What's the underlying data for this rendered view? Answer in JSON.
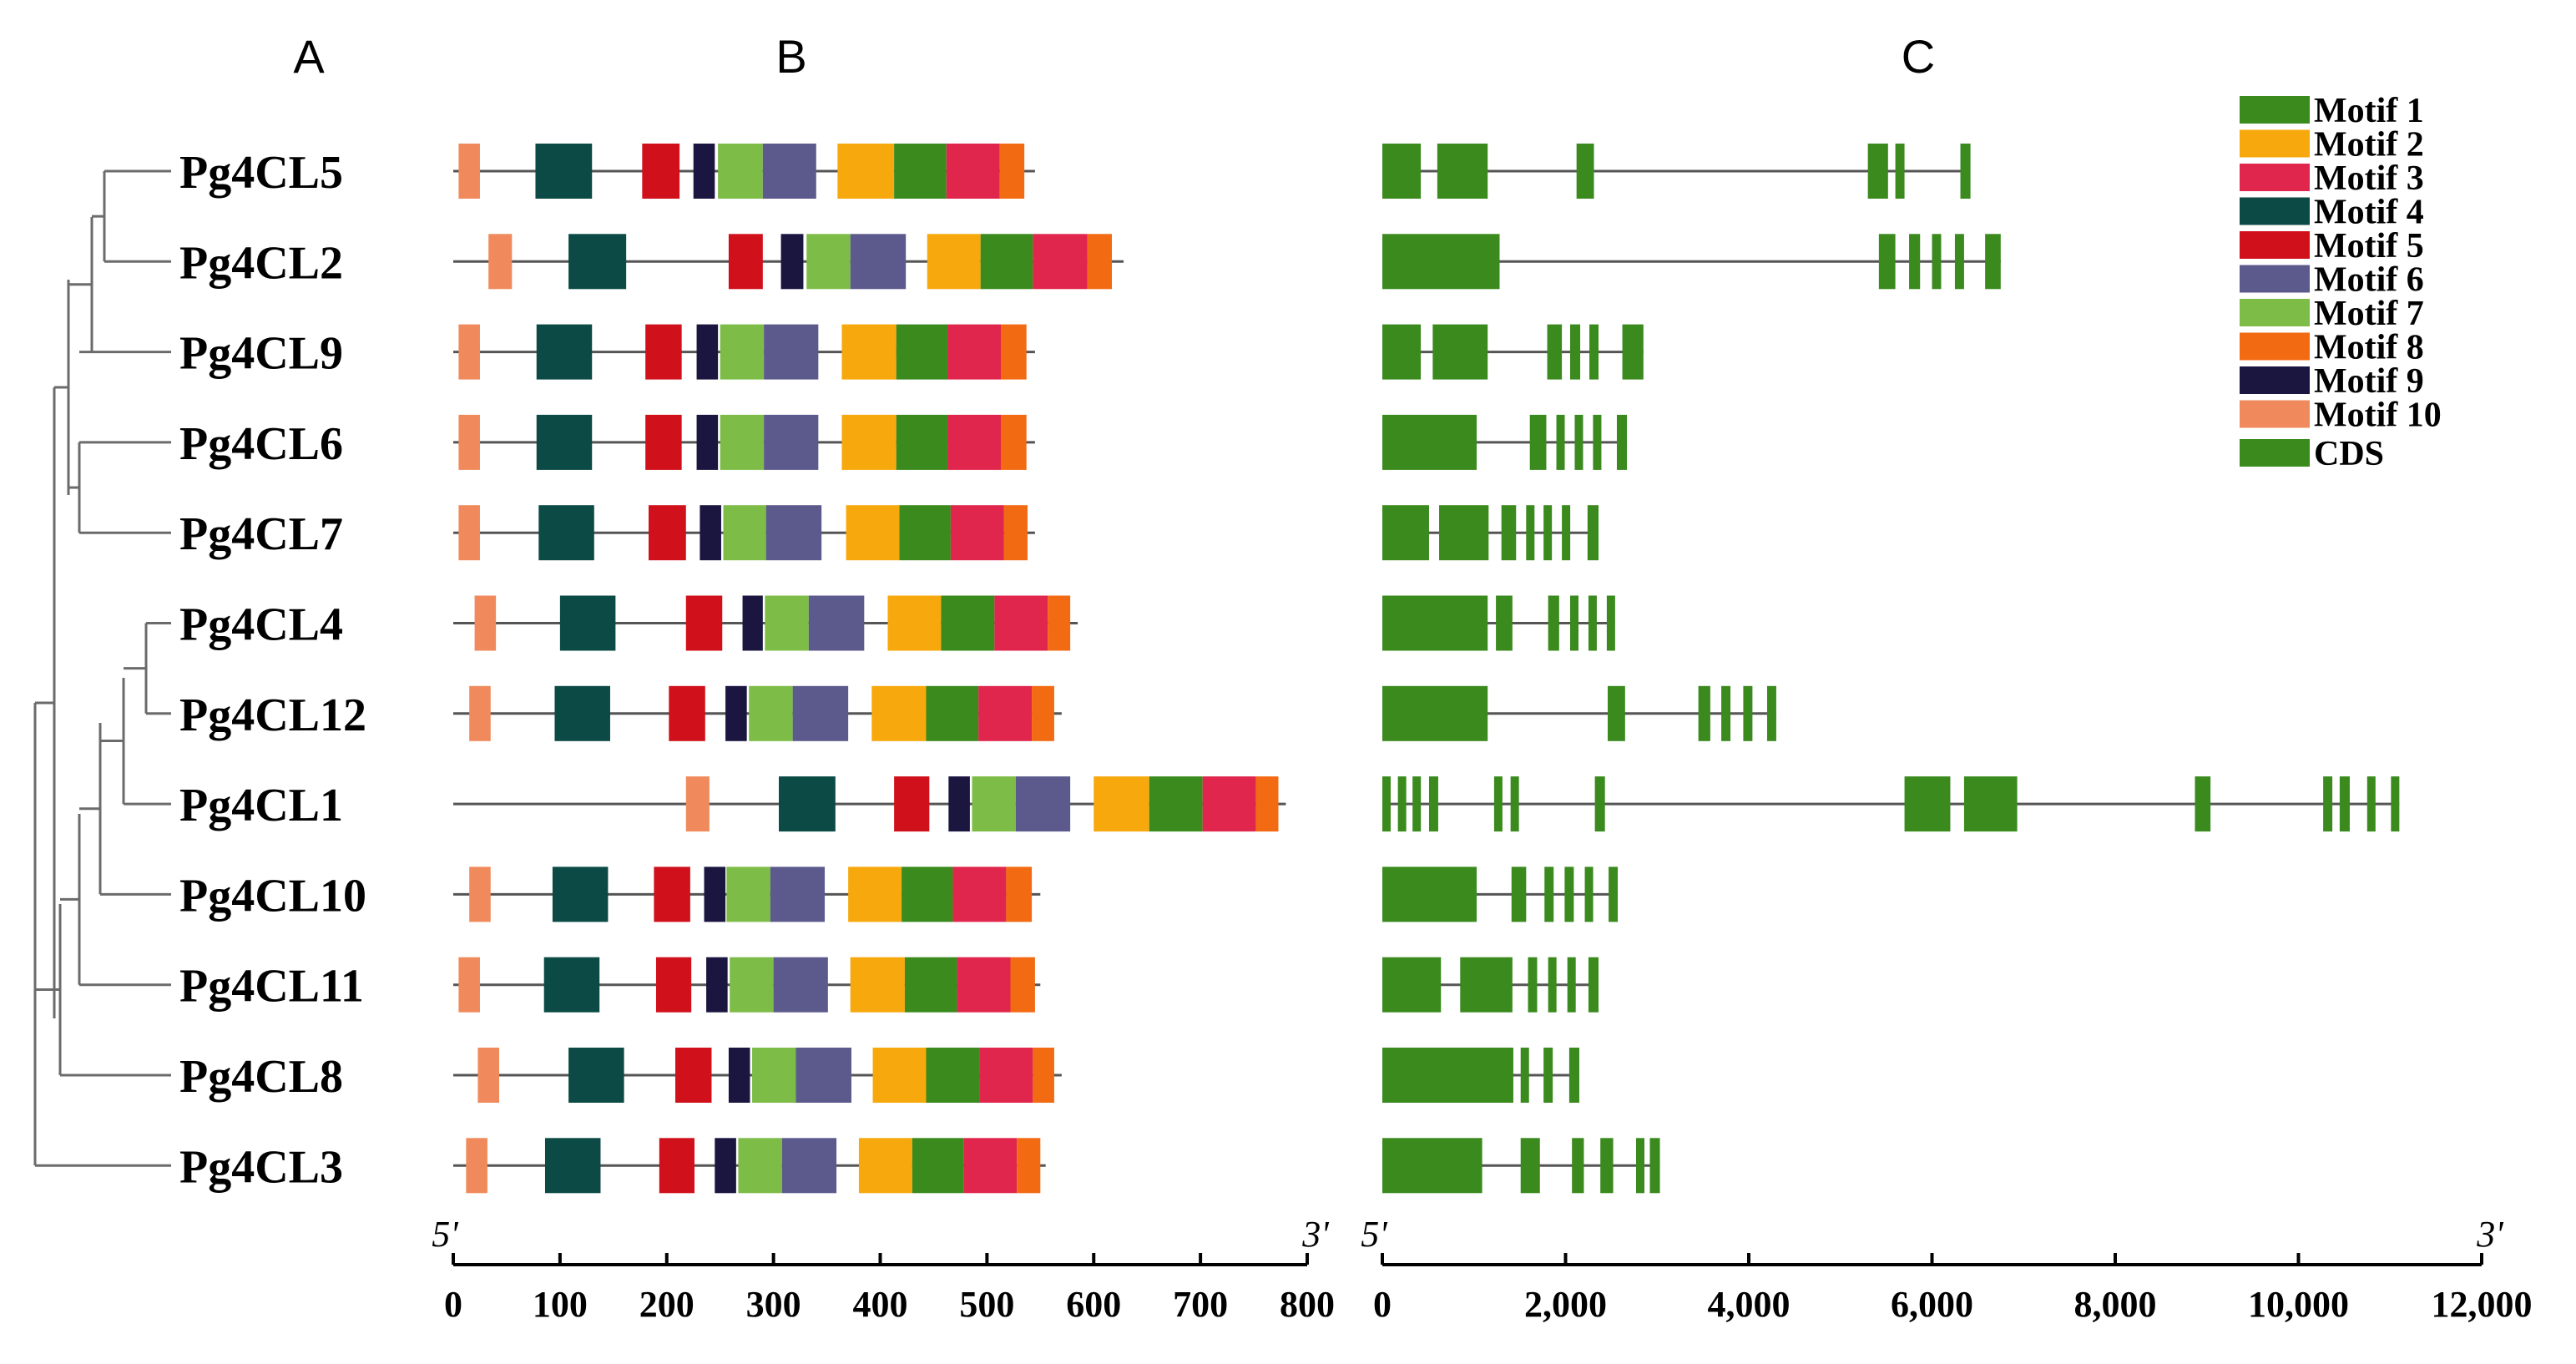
{
  "panels": {
    "a": "A",
    "b": "B",
    "c": "C"
  },
  "colors": {
    "Motif 1": "#3a8a1e",
    "Motif 2": "#f7a80c",
    "Motif 3": "#e0264c",
    "Motif 4": "#0b4a45",
    "Motif 5": "#d0101a",
    "Motif 6": "#5c5a8c",
    "Motif 7": "#7dbc46",
    "Motif 8": "#f26a12",
    "Motif 9": "#1b1640",
    "Motif 10": "#f08a5c",
    "CDS": "#3a8a1e"
  },
  "legend": [
    "Motif 1",
    "Motif 2",
    "Motif 3",
    "Motif 4",
    "Motif 5",
    "Motif 6",
    "Motif 7",
    "Motif 8",
    "Motif 9",
    "Motif 10",
    "CDS"
  ],
  "genes": [
    "Pg4CL5",
    "Pg4CL2",
    "Pg4CL9",
    "Pg4CL6",
    "Pg4CL7",
    "Pg4CL4",
    "Pg4CL12",
    "Pg4CL1",
    "Pg4CL10",
    "Pg4CL11",
    "Pg4CL8",
    "Pg4CL3"
  ],
  "chart_data": {
    "type": "gene-structure",
    "protein_axis": {
      "ticks": [
        "0",
        "100",
        "200",
        "300",
        "400",
        "500",
        "600",
        "700",
        "800"
      ],
      "range": [
        0,
        800
      ],
      "start_label": "5'",
      "end_label": "3'"
    },
    "gene_axis": {
      "ticks": [
        "0",
        "2,000",
        "4,000",
        "6,000",
        "8,000",
        "10,000",
        "12,000"
      ],
      "range": [
        0,
        12000
      ],
      "start_label": "5'",
      "end_label": "3'"
    },
    "proteins": [
      {
        "gene": "Pg4CL5",
        "length": 545,
        "motifs": [
          [
            10,
            5,
            25
          ],
          [
            4,
            77,
            130
          ],
          [
            5,
            177,
            212
          ],
          [
            9,
            225,
            245
          ],
          [
            7,
            248,
            290
          ],
          [
            6,
            290,
            340
          ],
          [
            2,
            360,
            413
          ],
          [
            1,
            413,
            462
          ],
          [
            3,
            462,
            512
          ],
          [
            8,
            512,
            535
          ]
        ]
      },
      {
        "gene": "Pg4CL2",
        "length": 628,
        "motifs": [
          [
            10,
            33,
            55
          ],
          [
            4,
            108,
            162
          ],
          [
            5,
            258,
            290
          ],
          [
            9,
            307,
            328
          ],
          [
            7,
            331,
            372
          ],
          [
            6,
            372,
            424
          ],
          [
            2,
            444,
            494
          ],
          [
            1,
            494,
            543
          ],
          [
            3,
            543,
            594
          ],
          [
            8,
            594,
            617
          ]
        ]
      },
      {
        "gene": "Pg4CL9",
        "length": 545,
        "motifs": [
          [
            10,
            5,
            25
          ],
          [
            4,
            78,
            130
          ],
          [
            5,
            180,
            214
          ],
          [
            9,
            228,
            248
          ],
          [
            7,
            250,
            291
          ],
          [
            6,
            291,
            342
          ],
          [
            2,
            364,
            415
          ],
          [
            1,
            415,
            463
          ],
          [
            3,
            463,
            513
          ],
          [
            8,
            513,
            537
          ]
        ]
      },
      {
        "gene": "Pg4CL6",
        "length": 545,
        "motifs": [
          [
            10,
            5,
            25
          ],
          [
            4,
            78,
            130
          ],
          [
            5,
            180,
            214
          ],
          [
            9,
            228,
            248
          ],
          [
            7,
            250,
            291
          ],
          [
            6,
            291,
            342
          ],
          [
            2,
            364,
            415
          ],
          [
            1,
            415,
            463
          ],
          [
            3,
            463,
            513
          ],
          [
            8,
            513,
            537
          ]
        ]
      },
      {
        "gene": "Pg4CL7",
        "length": 545,
        "motifs": [
          [
            10,
            5,
            25
          ],
          [
            4,
            80,
            132
          ],
          [
            5,
            183,
            218
          ],
          [
            9,
            231,
            251
          ],
          [
            7,
            253,
            293
          ],
          [
            6,
            293,
            345
          ],
          [
            2,
            368,
            418
          ],
          [
            1,
            418,
            466
          ],
          [
            3,
            466,
            516
          ],
          [
            8,
            516,
            538
          ]
        ]
      },
      {
        "gene": "Pg4CL4",
        "length": 585,
        "motifs": [
          [
            10,
            20,
            40
          ],
          [
            4,
            100,
            152
          ],
          [
            5,
            218,
            252
          ],
          [
            9,
            271,
            290
          ],
          [
            7,
            292,
            333
          ],
          [
            6,
            333,
            385
          ],
          [
            2,
            407,
            457
          ],
          [
            1,
            457,
            507
          ],
          [
            3,
            507,
            557
          ],
          [
            8,
            557,
            578
          ]
        ]
      },
      {
        "gene": "Pg4CL12",
        "length": 570,
        "motifs": [
          [
            10,
            15,
            35
          ],
          [
            4,
            95,
            147
          ],
          [
            5,
            202,
            236
          ],
          [
            9,
            255,
            275
          ],
          [
            7,
            277,
            318
          ],
          [
            6,
            318,
            370
          ],
          [
            2,
            392,
            443
          ],
          [
            1,
            443,
            492
          ],
          [
            3,
            492,
            542
          ],
          [
            8,
            542,
            563
          ]
        ]
      },
      {
        "gene": "Pg4CL1",
        "length": 780,
        "motifs": [
          [
            10,
            218,
            240
          ],
          [
            4,
            305,
            358
          ],
          [
            5,
            413,
            446
          ],
          [
            9,
            464,
            484
          ],
          [
            7,
            486,
            527
          ],
          [
            6,
            527,
            578
          ],
          [
            2,
            600,
            652
          ],
          [
            1,
            652,
            702
          ],
          [
            3,
            702,
            752
          ],
          [
            8,
            752,
            773
          ]
        ]
      },
      {
        "gene": "Pg4CL10",
        "length": 550,
        "motifs": [
          [
            10,
            15,
            35
          ],
          [
            4,
            93,
            145
          ],
          [
            5,
            188,
            222
          ],
          [
            9,
            235,
            255
          ],
          [
            7,
            256,
            297
          ],
          [
            6,
            297,
            348
          ],
          [
            2,
            370,
            420
          ],
          [
            1,
            420,
            468
          ],
          [
            3,
            468,
            518
          ],
          [
            8,
            518,
            542
          ]
        ]
      },
      {
        "gene": "Pg4CL11",
        "length": 550,
        "motifs": [
          [
            10,
            5,
            25
          ],
          [
            4,
            85,
            137
          ],
          [
            5,
            190,
            223
          ],
          [
            9,
            237,
            257
          ],
          [
            7,
            259,
            300
          ],
          [
            6,
            300,
            351
          ],
          [
            2,
            372,
            423
          ],
          [
            1,
            423,
            472
          ],
          [
            3,
            472,
            522
          ],
          [
            8,
            522,
            545
          ]
        ]
      },
      {
        "gene": "Pg4CL8",
        "length": 570,
        "motifs": [
          [
            10,
            23,
            43
          ],
          [
            4,
            108,
            160
          ],
          [
            5,
            208,
            242
          ],
          [
            9,
            258,
            278
          ],
          [
            7,
            280,
            321
          ],
          [
            6,
            321,
            373
          ],
          [
            2,
            393,
            443
          ],
          [
            1,
            443,
            493
          ],
          [
            3,
            493,
            543
          ],
          [
            8,
            543,
            563
          ]
        ]
      },
      {
        "gene": "Pg4CL3",
        "length": 555,
        "motifs": [
          [
            10,
            12,
            32
          ],
          [
            4,
            86,
            138
          ],
          [
            5,
            193,
            226
          ],
          [
            9,
            245,
            265
          ],
          [
            7,
            267,
            308
          ],
          [
            6,
            308,
            359
          ],
          [
            2,
            380,
            430
          ],
          [
            1,
            430,
            478
          ],
          [
            3,
            478,
            528
          ],
          [
            8,
            528,
            550
          ]
        ]
      }
    ],
    "structures": [
      {
        "gene": "Pg4CL5",
        "length": 6400,
        "exons": [
          [
            0,
            420
          ],
          [
            600,
            1150
          ],
          [
            2120,
            2310
          ],
          [
            5300,
            5520
          ],
          [
            5600,
            5700
          ],
          [
            6310,
            6420
          ]
        ]
      },
      {
        "gene": "Pg4CL2",
        "length": 6750,
        "exons": [
          [
            0,
            1280
          ],
          [
            5420,
            5600
          ],
          [
            5750,
            5870
          ],
          [
            6000,
            6100
          ],
          [
            6250,
            6350
          ],
          [
            6580,
            6750
          ]
        ]
      },
      {
        "gene": "Pg4CL9",
        "length": 2850,
        "exons": [
          [
            0,
            420
          ],
          [
            550,
            1150
          ],
          [
            1800,
            1960
          ],
          [
            2050,
            2160
          ],
          [
            2260,
            2360
          ],
          [
            2620,
            2850
          ]
        ]
      },
      {
        "gene": "Pg4CL6",
        "length": 2670,
        "exons": [
          [
            0,
            1030
          ],
          [
            1610,
            1790
          ],
          [
            1900,
            1990
          ],
          [
            2100,
            2190
          ],
          [
            2300,
            2380
          ],
          [
            2560,
            2670
          ]
        ]
      },
      {
        "gene": "Pg4CL7",
        "length": 2360,
        "exons": [
          [
            0,
            510
          ],
          [
            620,
            1160
          ],
          [
            1300,
            1460
          ],
          [
            1570,
            1650
          ],
          [
            1760,
            1840
          ],
          [
            1960,
            2040
          ],
          [
            2240,
            2360
          ]
        ]
      },
      {
        "gene": "Pg4CL4",
        "length": 2540,
        "exons": [
          [
            0,
            1150
          ],
          [
            1240,
            1420
          ],
          [
            1810,
            1930
          ],
          [
            2050,
            2140
          ],
          [
            2250,
            2340
          ],
          [
            2450,
            2540
          ]
        ]
      },
      {
        "gene": "Pg4CL12",
        "length": 4300,
        "exons": [
          [
            0,
            1150
          ],
          [
            2460,
            2650
          ],
          [
            3450,
            3580
          ],
          [
            3700,
            3800
          ],
          [
            3940,
            4040
          ],
          [
            4200,
            4300
          ]
        ]
      },
      {
        "gene": "Pg4CL1",
        "length": 11100,
        "exons": [
          [
            0,
            90
          ],
          [
            170,
            250
          ],
          [
            330,
            420
          ],
          [
            510,
            610
          ],
          [
            1220,
            1300
          ],
          [
            1400,
            1480
          ],
          [
            2320,
            2430
          ],
          [
            5700,
            6200
          ],
          [
            6350,
            6930
          ],
          [
            8870,
            9040
          ],
          [
            10270,
            10370
          ],
          [
            10450,
            10560
          ],
          [
            10750,
            10840
          ],
          [
            11010,
            11100
          ]
        ]
      },
      {
        "gene": "Pg4CL10",
        "length": 2570,
        "exons": [
          [
            0,
            1030
          ],
          [
            1410,
            1570
          ],
          [
            1770,
            1870
          ],
          [
            1990,
            2090
          ],
          [
            2210,
            2290
          ],
          [
            2470,
            2570
          ]
        ]
      },
      {
        "gene": "Pg4CL11",
        "length": 2360,
        "exons": [
          [
            0,
            640
          ],
          [
            850,
            1420
          ],
          [
            1590,
            1690
          ],
          [
            1810,
            1900
          ],
          [
            2020,
            2110
          ],
          [
            2250,
            2360
          ]
        ]
      },
      {
        "gene": "Pg4CL8",
        "length": 2150,
        "exons": [
          [
            0,
            1430
          ],
          [
            1510,
            1580
          ],
          [
            1760,
            1860
          ],
          [
            2040,
            2150
          ]
        ]
      },
      {
        "gene": "Pg4CL3",
        "length": 3030,
        "exons": [
          [
            0,
            1090
          ],
          [
            1510,
            1720
          ],
          [
            2070,
            2200
          ],
          [
            2380,
            2520
          ],
          [
            2770,
            2860
          ],
          [
            2920,
            3030
          ]
        ]
      }
    ]
  }
}
